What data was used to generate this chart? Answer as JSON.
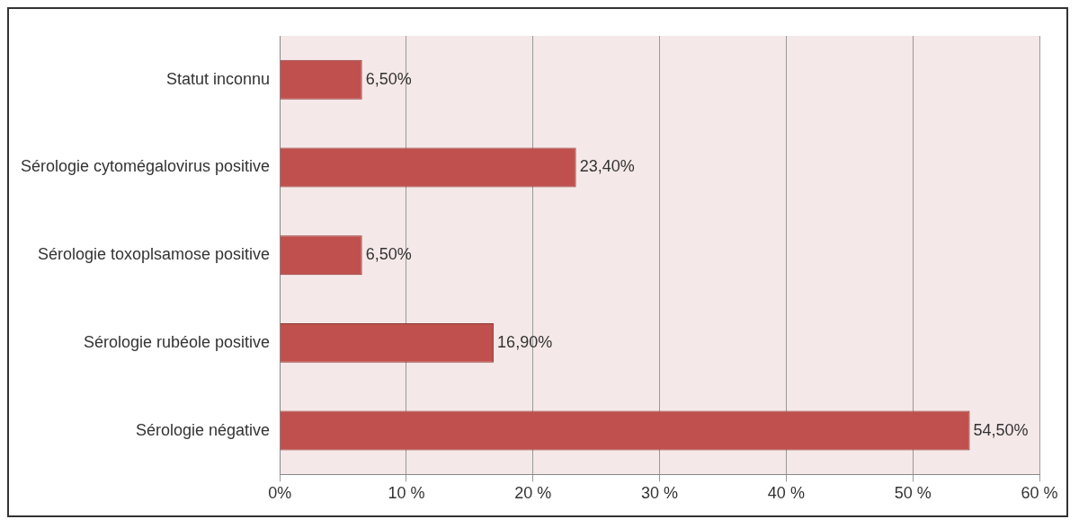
{
  "chart_data": {
    "type": "bar",
    "orientation": "horizontal",
    "categories": [
      "Statut inconnu",
      "Sérologie cytomégalovirus positive",
      "Sérologie toxoplsamose positive",
      "Sérologie rubéole positive",
      "Sérologie négative"
    ],
    "values": [
      6.5,
      23.4,
      6.5,
      16.9,
      54.5
    ],
    "value_labels": [
      "6,50%",
      "23,40%",
      "6,50%",
      "16,90%",
      "54,50%"
    ],
    "color": "#c0504d",
    "xlim": [
      0,
      60
    ],
    "xticks": [
      {
        "value": 0,
        "label": "0%"
      },
      {
        "value": 10,
        "label": "10 %"
      },
      {
        "value": 20,
        "label": "20 %"
      },
      {
        "value": 30,
        "label": "30 %"
      },
      {
        "value": 40,
        "label": "40 %"
      },
      {
        "value": 50,
        "label": "50 %"
      },
      {
        "value": 60,
        "label": "60 %"
      }
    ],
    "grid": "x"
  }
}
